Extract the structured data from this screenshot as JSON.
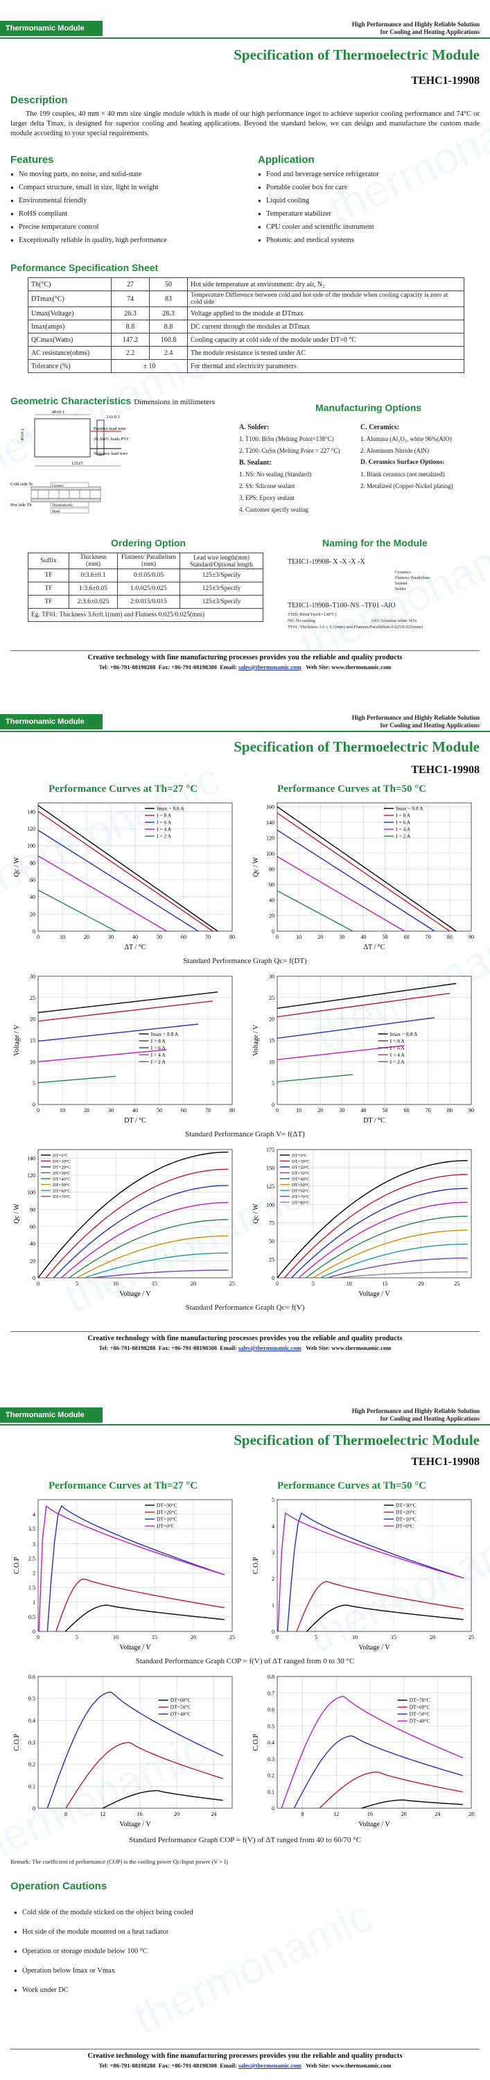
{
  "header": {
    "badge": "Thermonamic Module",
    "tagline1": "High Performance and Highly Reliable Solution",
    "tagline2": "for Cooling and Heating Applications",
    "title": "Specification of Thermoelectric Module",
    "model": "TEHC1-19908"
  },
  "watermark": "thermonamic",
  "description": {
    "heading": "Description",
    "text": "The 199 couples, 40 mm × 40 mm size single module which is made of our high performance ingot to achieve superior cooling performance and 74°C or larger delta Tmax, is designed for superior cooling and heating applications. Beyond the standard below, we can design and manufacture the custom made module according to your special requirements."
  },
  "features": {
    "heading": "Features",
    "items": [
      "No moving parts, no noise, and solid-state",
      "Compact structure, small in size, light in weight",
      "Environmental friendly",
      "RoHS compliant",
      "Precise temperature control",
      "Exceptionally reliable in quality, high performance"
    ]
  },
  "application": {
    "heading": "Application",
    "items": [
      "Food and beverage service refrigerator",
      "Portable cooler box for cars",
      "Liquid cooling",
      "Temperature stabilizer",
      "CPU cooler and scientific instrument",
      "Photonic and medical systems"
    ]
  },
  "perf_sheet": {
    "heading": "Peformance Specification Sheet",
    "rows": [
      [
        "Th(°C)",
        "27",
        "50",
        "Hot side temperature at environment: dry air, N₂"
      ],
      [
        "DTmax(°C)",
        "74",
        "83",
        "Temperature Difference between cold and hot side of the module when cooling capacity is zero at cold side"
      ],
      [
        "Umax(Voltage)",
        "26.3",
        "28.3",
        "Voltage applied to the module at DTmax"
      ],
      [
        "Imax(amps)",
        "8.8",
        "8.8",
        "DC current through the modules at DTmax"
      ],
      [
        "QCmax(Watts)",
        "147.2",
        "160.8",
        "Cooling capacity at cold side of the module under DT=0 °C"
      ],
      [
        "AC resistance(ohms)",
        "2.2",
        "2.4",
        "The module resistance is tested under AC"
      ],
      [
        "Tolerance (%)",
        "± 10",
        "",
        "For thermal and electricity parameters"
      ]
    ]
  },
  "geometric": {
    "heading": "Geometric Characteristics",
    "sub": "Dimensions in millimeters",
    "labels": [
      "40±0.1",
      "3.6±0.1",
      "Positive lead wire",
      "20 AWG leads PVC",
      "Negative lead wire",
      "125±5",
      "Cold side Tc",
      "Hot side Th",
      "Ceramic",
      "Thermoelectric",
      "Metal"
    ]
  },
  "manufacturing": {
    "heading": "Manufacturing Options",
    "solder_head": "A. Solder:",
    "solder": [
      "1. T100: BiSn (Melting Point=138°C)",
      "2. T200: CuSn (Melting Point = 227 °C)"
    ],
    "sealant_head": "B. Sealant:",
    "sealant": [
      "1. NS: No sealing (Standard)",
      "2. SS: Silicone sealant",
      "3. EPS: Epoxy sealant",
      "4. Customer specify sealing"
    ],
    "ceramic_head": "C. Ceramics:",
    "ceramic": [
      "1. Alumina (Al₂O₃, white 96%(AlO)",
      "2. Aluminum Nitride (AlN)"
    ],
    "surface_head": "D. Ceramics Surface Options:",
    "surface": [
      "1. Blank ceramics (not metalized)",
      "2. Metalized (Copper-Nickel plating)"
    ]
  },
  "ordering": {
    "heading": "Ordering Option",
    "cols": [
      "Suffix",
      "Thickness (mm)",
      "Flatness/ Parallelism (mm)",
      "Lead wire length(mm) Standard/Optional length"
    ],
    "rows": [
      [
        "TF",
        "0:3.6±0.1",
        "0:0.05/0.05",
        "125±3/Specify"
      ],
      [
        "TF",
        "1:3.6±0.05",
        "1:0.025/0.025",
        "125±3/Specify"
      ],
      [
        "TF",
        "2:3.6±0.025",
        "2:0.015/0.015",
        "125±3/Specify"
      ]
    ],
    "example": "Eg. TF01: Thickness 3.6±0.1(mm) and Flatness 0.025/0.025(mm)"
  },
  "naming": {
    "heading": "Naming for the Module",
    "code": "TEHC1-19908- X -X -X -X",
    "labels": [
      "Ceramics",
      "Flatness/ Parallelism",
      "Sealant",
      "Solder"
    ],
    "example": "TEHC1-19908–T100–NS –TF01 -AlO",
    "notes": [
      "T100: BiSn(Tmelt=138°C)",
      "NS: No sealing",
      "AlO: Alumina white 96%",
      "TF01: Thickness 3.6 ± 0.1(mm) and Flatness/Parallelism 0.025/0.025(mm)"
    ]
  },
  "footer": {
    "line1": "Creative technology with fine manufacturing processes provides you the reliable and quality products",
    "tel": "Tel: +86-791-88198288",
    "fax": "Fax: +86-791-88198308",
    "email_label": "Email:",
    "email": "sales@thermonamic.com",
    "web": "Web Site: www.thermonamic.com"
  },
  "page2": {
    "left_title": "Performance Curves at Th=27 °C",
    "right_title": "Performance Curves at Th=50 °C",
    "cap1": "Standard Performance Graph Qc= f(DT)",
    "cap2": "Standard Performance Graph V= f(ΔT)",
    "cap3": "Standard Performance Graph Qc= f(V)"
  },
  "page3": {
    "left_title": "Performance Curves at Th=27 °C",
    "right_title": "Performance Curves at Th=50 °C",
    "cap1": "Standard Performance Graph COP = f(V) of ΔT ranged from 0 to 30 °C",
    "cap2": "Standard Performance Graph COP = f(V) of ΔT ranged from 40 to 60/70 °C",
    "remark": "Remark: The coefficient of performance (COP) is the cooling power Qc/Input power (V × I)",
    "cautions_heading": "Operation Cautions",
    "cautions": [
      "Cold side of the module sticked on the object being cooled",
      "Hot side of the module mounted on a heat radiator",
      "Operation or storage module below 100 °C",
      "Operation below Imax or Vmax",
      "Work under DC"
    ]
  },
  "chart_data": [
    {
      "id": "qc_dt_27",
      "type": "line",
      "title": "",
      "xlabel": "ΔT / °C",
      "ylabel": "Qc / W",
      "xlim": [
        0,
        80
      ],
      "ylim": [
        0,
        150
      ],
      "xticks": [
        0,
        10,
        20,
        30,
        40,
        50,
        60,
        70,
        80
      ],
      "yticks": [
        0,
        20,
        40,
        60,
        80,
        100,
        120,
        140
      ],
      "legend": [
        "Imax = 8.8 A",
        "I = 8 A",
        "I = 6 A",
        "I = 4 A",
        "I = 2 A"
      ],
      "series": [
        {
          "name": "Imax = 8.8 A",
          "color": "#000000",
          "x": [
            0,
            74
          ],
          "y": [
            147,
            0
          ]
        },
        {
          "name": "I = 8 A",
          "color": "#c0182b",
          "x": [
            0,
            72
          ],
          "y": [
            140,
            0
          ]
        },
        {
          "name": "I = 6 A",
          "color": "#1f2fc4",
          "x": [
            0,
            66
          ],
          "y": [
            118,
            0
          ]
        },
        {
          "name": "I = 4 A",
          "color": "#c418c4",
          "x": [
            0,
            53
          ],
          "y": [
            88,
            0
          ]
        },
        {
          "name": "I = 2 A",
          "color": "#1f8a3b",
          "x": [
            0,
            32
          ],
          "y": [
            48,
            0
          ]
        }
      ]
    },
    {
      "id": "qc_dt_50",
      "type": "line",
      "xlabel": "ΔT / °C",
      "ylabel": "Qc / W",
      "xlim": [
        0,
        90
      ],
      "ylim": [
        0,
        165
      ],
      "xticks": [
        0,
        10,
        20,
        30,
        40,
        50,
        60,
        70,
        80,
        90
      ],
      "yticks": [
        0,
        20,
        40,
        60,
        80,
        100,
        120,
        140,
        160
      ],
      "legend": [
        "Imax = 8.8 A",
        "I = 8 A",
        "I = 6 A",
        "I = 4 A",
        "I = 2 A"
      ],
      "series": [
        {
          "name": "Imax = 8.8 A",
          "color": "#000000",
          "x": [
            0,
            83
          ],
          "y": [
            160,
            0
          ]
        },
        {
          "name": "I = 8 A",
          "color": "#c0182b",
          "x": [
            0,
            80
          ],
          "y": [
            152,
            0
          ]
        },
        {
          "name": "I = 6 A",
          "color": "#1f2fc4",
          "x": [
            0,
            73
          ],
          "y": [
            130,
            0
          ]
        },
        {
          "name": "I = 4 A",
          "color": "#c418c4",
          "x": [
            0,
            59
          ],
          "y": [
            96,
            0
          ]
        },
        {
          "name": "I = 2 A",
          "color": "#1f8a3b",
          "x": [
            0,
            35
          ],
          "y": [
            52,
            0
          ]
        }
      ]
    },
    {
      "id": "v_dt_27",
      "type": "line",
      "xlabel": "DT / °C",
      "ylabel": "Voltage / V",
      "xlim": [
        0,
        80
      ],
      "ylim": [
        0,
        30
      ],
      "xticks": [
        0,
        10,
        20,
        30,
        40,
        50,
        60,
        70,
        80
      ],
      "yticks": [
        0,
        5,
        10,
        15,
        20,
        25,
        30
      ],
      "legend": [
        "Imax = 8.8 A",
        "I = 8 A",
        "I = 6 A",
        "I = 4 A",
        "I = 2 A"
      ],
      "series": [
        {
          "name": "Imax = 8.8 A",
          "color": "#000000",
          "x": [
            0,
            74
          ],
          "y": [
            21.5,
            26.3
          ]
        },
        {
          "name": "I = 8 A",
          "color": "#c0182b",
          "x": [
            0,
            72
          ],
          "y": [
            19.5,
            24.2
          ]
        },
        {
          "name": "I = 6 A",
          "color": "#1f2fc4",
          "x": [
            0,
            66
          ],
          "y": [
            14.8,
            18.8
          ]
        },
        {
          "name": "I = 4 A",
          "color": "#c418c4",
          "x": [
            0,
            53
          ],
          "y": [
            10,
            12.8
          ]
        },
        {
          "name": "I = 2 A",
          "color": "#1f8a3b",
          "x": [
            0,
            32
          ],
          "y": [
            5.1,
            6.6
          ]
        }
      ]
    },
    {
      "id": "v_dt_50",
      "type": "line",
      "xlabel": "DT / °C",
      "ylabel": "Voltage / V",
      "xlim": [
        0,
        90
      ],
      "ylim": [
        0,
        30
      ],
      "xticks": [
        0,
        10,
        20,
        30,
        40,
        50,
        60,
        70,
        80,
        90
      ],
      "yticks": [
        0,
        5,
        10,
        15,
        20,
        25,
        30
      ],
      "legend": [
        "Imax = 8.8 A",
        "I = 8 A",
        "I = 6 A",
        "I = 4 A",
        "I = 2 A"
      ],
      "series": [
        {
          "name": "Imax = 8.8 A",
          "color": "#000000",
          "x": [
            0,
            83
          ],
          "y": [
            22.5,
            28.3
          ]
        },
        {
          "name": "I = 8 A",
          "color": "#c0182b",
          "x": [
            0,
            80
          ],
          "y": [
            20.5,
            26
          ]
        },
        {
          "name": "I = 6 A",
          "color": "#1f2fc4",
          "x": [
            0,
            73
          ],
          "y": [
            15.5,
            20.3
          ]
        },
        {
          "name": "I = 4 A",
          "color": "#c418c4",
          "x": [
            0,
            59
          ],
          "y": [
            10.5,
            13.8
          ]
        },
        {
          "name": "I = 2 A",
          "color": "#1f8a3b",
          "x": [
            0,
            35
          ],
          "y": [
            5.3,
            7
          ]
        }
      ]
    },
    {
      "id": "qc_v_27",
      "type": "line",
      "xlabel": "Voltage / V",
      "ylabel": "Qc / W",
      "xlim": [
        0,
        25
      ],
      "ylim": [
        0,
        150
      ],
      "xticks": [
        0,
        5,
        10,
        15,
        20,
        25
      ],
      "yticks": [
        0,
        20,
        40,
        60,
        80,
        100,
        120,
        140
      ],
      "legend": [
        "DT=0°C",
        "DT=10°C",
        "DT=20°C",
        "DT=30°C",
        "DT=40°C",
        "DT=50°C",
        "DT=60°C",
        "DT=70°C"
      ],
      "series": [
        {
          "name": "DT=0°C",
          "peak": 147,
          "start": 0
        },
        {
          "name": "DT=10°C",
          "peak": 127,
          "start": 1
        },
        {
          "name": "DT=20°C",
          "peak": 108,
          "start": 2
        },
        {
          "name": "DT=30°C",
          "peak": 88,
          "start": 3
        },
        {
          "name": "DT=40°C",
          "peak": 68,
          "start": 4
        },
        {
          "name": "DT=50°C",
          "peak": 49,
          "start": 5
        },
        {
          "name": "DT=60°C",
          "peak": 29,
          "start": 6
        },
        {
          "name": "DT=70°C",
          "peak": 9,
          "start": 7
        }
      ]
    },
    {
      "id": "qc_v_50",
      "type": "line",
      "xlabel": "Voltage / V",
      "ylabel": "Qc / W",
      "xlim": [
        0,
        27
      ],
      "ylim": [
        0,
        175
      ],
      "xticks": [
        0,
        5,
        10,
        15,
        20,
        25
      ],
      "yticks": [
        0,
        25,
        50,
        75,
        100,
        125,
        150,
        175
      ],
      "legend": [
        "DT=0°C",
        "DT=10°C",
        "DT=20°C",
        "DT=30°C",
        "DT=40°C",
        "DT=50°C",
        "DT=60°C",
        "DT=70°C",
        "DT=80°C"
      ],
      "series": [
        {
          "name": "DT=0°C",
          "peak": 160,
          "start": 0
        },
        {
          "name": "DT=10°C",
          "peak": 141,
          "start": 1
        },
        {
          "name": "DT=20°C",
          "peak": 122,
          "start": 2
        },
        {
          "name": "DT=30°C",
          "peak": 103,
          "start": 3
        },
        {
          "name": "DT=40°C",
          "peak": 84,
          "start": 4
        },
        {
          "name": "DT=50°C",
          "peak": 65,
          "start": 5
        },
        {
          "name": "DT=60°C",
          "peak": 46,
          "start": 6
        },
        {
          "name": "DT=70°C",
          "peak": 27,
          "start": 7
        },
        {
          "name": "DT=80°C",
          "peak": 8,
          "start": 8
        }
      ]
    },
    {
      "id": "cop_27_low",
      "type": "line",
      "xlabel": "Voltage / V",
      "ylabel": "C.O.P",
      "xlim": [
        0,
        25
      ],
      "ylim": [
        0,
        4.5
      ],
      "xticks": [
        0,
        5,
        10,
        15,
        20,
        25
      ],
      "yticks": [
        0,
        0.5,
        1,
        1.5,
        2,
        2.5,
        3,
        3.5,
        4
      ],
      "legend": [
        "DT=30°C",
        "DT=20°C",
        "DT=10°C",
        "DT=0°C"
      ],
      "series": [
        {
          "name": "DT=30°C",
          "color": "#000000",
          "peak": 0.9,
          "vpeak": 9,
          "v0": 3.5,
          "vend": 24
        },
        {
          "name": "DT=20°C",
          "color": "#c0182b",
          "peak": 1.8,
          "vpeak": 6,
          "v0": 2.3,
          "vend": 24
        },
        {
          "name": "DT=10°C",
          "color": "#1f2fc4",
          "peak": 4.3,
          "vpeak": 3,
          "v0": 1.2,
          "vend": 24
        },
        {
          "name": "DT=0°C",
          "color": "#c418c4",
          "peak": 4.3,
          "vpeak": 1,
          "v0": 0.1,
          "vend": 24
        }
      ]
    },
    {
      "id": "cop_50_low",
      "type": "line",
      "xlabel": "Voltage / V",
      "ylabel": "C.O.P",
      "xlim": [
        0,
        25
      ],
      "ylim": [
        0,
        5
      ],
      "xticks": [
        0,
        5,
        10,
        15,
        20,
        25
      ],
      "yticks": [
        0,
        1,
        2,
        3,
        4,
        5
      ],
      "legend": [
        "DT=30°C",
        "DT=20°C",
        "DT=10°C",
        "DT=0°C"
      ],
      "series": [
        {
          "name": "DT=30°C",
          "color": "#000000",
          "peak": 1.0,
          "vpeak": 9,
          "v0": 3.8,
          "vend": 24
        },
        {
          "name": "DT=20°C",
          "color": "#c0182b",
          "peak": 1.9,
          "vpeak": 6.5,
          "v0": 2.5,
          "vend": 24
        },
        {
          "name": "DT=10°C",
          "color": "#1f2fc4",
          "peak": 4.5,
          "vpeak": 3.2,
          "v0": 1.3,
          "vend": 24
        },
        {
          "name": "DT=0°C",
          "color": "#c418c4",
          "peak": 4.5,
          "vpeak": 1.1,
          "v0": 0.1,
          "vend": 24
        }
      ]
    },
    {
      "id": "cop_27_high",
      "type": "line",
      "xlabel": "Voltage / V",
      "ylabel": "C.O.P",
      "xlim": [
        5,
        26
      ],
      "ylim": [
        0,
        0.6
      ],
      "xticks": [
        8,
        12,
        16,
        20,
        24
      ],
      "yticks": [
        0,
        0.1,
        0.2,
        0.3,
        0.4,
        0.5,
        0.6
      ],
      "legend": [
        "DT=60°C",
        "DT=50°C",
        "DT=40°C"
      ],
      "series": [
        {
          "name": "DT=60°C",
          "color": "#000000",
          "peak": 0.08,
          "vpeak": 18,
          "v0": 12,
          "vend": 25
        },
        {
          "name": "DT=50°C",
          "color": "#c0182b",
          "peak": 0.3,
          "vpeak": 15,
          "v0": 8,
          "vend": 25
        },
        {
          "name": "DT=40°C",
          "color": "#1f2fc4",
          "peak": 0.53,
          "vpeak": 13,
          "v0": 6,
          "vend": 25
        }
      ]
    },
    {
      "id": "cop_50_high",
      "type": "line",
      "xlabel": "Voltage / V",
      "ylabel": "C.O.P",
      "xlim": [
        5,
        28
      ],
      "ylim": [
        0,
        0.8
      ],
      "xticks": [
        8,
        12,
        16,
        20,
        24,
        28
      ],
      "yticks": [
        0,
        0.1,
        0.2,
        0.3,
        0.4,
        0.5,
        0.6,
        0.7,
        0.8
      ],
      "legend": [
        "DT=70°C",
        "DT=60°C",
        "DT=50°C",
        "DT=40°C"
      ],
      "series": [
        {
          "name": "DT=70°C",
          "color": "#000000",
          "peak": 0.05,
          "vpeak": 20,
          "v0": 15,
          "vend": 27
        },
        {
          "name": "DT=60°C",
          "color": "#c0182b",
          "peak": 0.22,
          "vpeak": 17,
          "v0": 10,
          "vend": 27
        },
        {
          "name": "DT=50°C",
          "color": "#1f2fc4",
          "peak": 0.44,
          "vpeak": 14,
          "v0": 7,
          "vend": 27
        },
        {
          "name": "DT=40°C",
          "color": "#c418c4",
          "peak": 0.68,
          "vpeak": 13,
          "v0": 5.5,
          "vend": 27
        }
      ]
    }
  ]
}
